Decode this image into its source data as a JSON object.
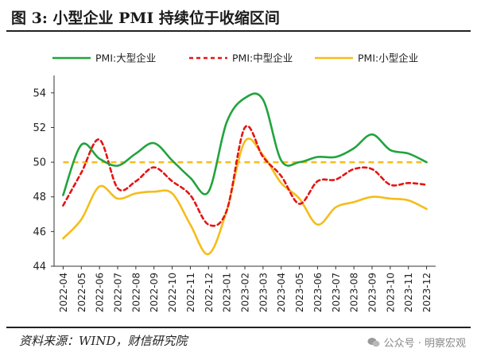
{
  "figure": {
    "title": "图 3:  小型企业 PMI 持续位于收缩区间",
    "source": "资料来源：WIND，财信研究院",
    "watermark": "公众号 · 明察宏观"
  },
  "colors": {
    "large": "#22a33e",
    "medium": "#e31515",
    "small": "#f5bd1a",
    "reference": "#f5bd1a",
    "axis": "#333333"
  },
  "chart_data": {
    "type": "line",
    "x": [
      "2022-04",
      "2022-05",
      "2022-06",
      "2022-07",
      "2022-08",
      "2022-09",
      "2022-10",
      "2022-11",
      "2022-12",
      "2023-01",
      "2023-02",
      "2023-03",
      "2023-04",
      "2023-05",
      "2023-06",
      "2023-07",
      "2023-08",
      "2023-09",
      "2023-10",
      "2023-11",
      "2023-12"
    ],
    "x_tick_labels": [
      "2022-04",
      "2022-05",
      "2022-06",
      "2022-07",
      "2022-08",
      "2022-09",
      "2022-10",
      "2022-11",
      "2022-12",
      "2023-01",
      "2023-02",
      "2023-03",
      "2023-04",
      "2023-05",
      "2023-06",
      "2023-07",
      "2023-08",
      "2023-09",
      "2023-10",
      "2023-11",
      "2023-12"
    ],
    "y_ticks": [
      44,
      46,
      48,
      50,
      52,
      54
    ],
    "ylim": [
      44,
      55
    ],
    "reference_line": 50,
    "legend_position": "top",
    "series": [
      {
        "name": "PMI:大型企业",
        "style": "solid",
        "values": [
          48.1,
          51.0,
          50.2,
          49.8,
          50.5,
          51.1,
          50.1,
          49.1,
          48.3,
          52.3,
          53.7,
          53.6,
          50.1,
          50.0,
          50.3,
          50.3,
          50.8,
          51.6,
          50.7,
          50.5,
          50.0
        ]
      },
      {
        "name": "PMI:中型企业",
        "style": "dashed",
        "values": [
          47.5,
          49.4,
          51.3,
          48.5,
          48.9,
          49.7,
          48.9,
          48.1,
          46.4,
          47.2,
          52.0,
          50.3,
          49.2,
          47.6,
          48.9,
          49.0,
          49.6,
          49.6,
          48.7,
          48.8,
          48.7
        ]
      },
      {
        "name": "PMI:小型企业",
        "style": "solid",
        "values": [
          45.6,
          46.7,
          48.6,
          47.9,
          48.2,
          48.3,
          48.2,
          46.4,
          44.7,
          47.2,
          51.2,
          50.4,
          48.8,
          47.9,
          46.4,
          47.4,
          47.7,
          48.0,
          47.9,
          47.8,
          47.3
        ]
      }
    ]
  }
}
